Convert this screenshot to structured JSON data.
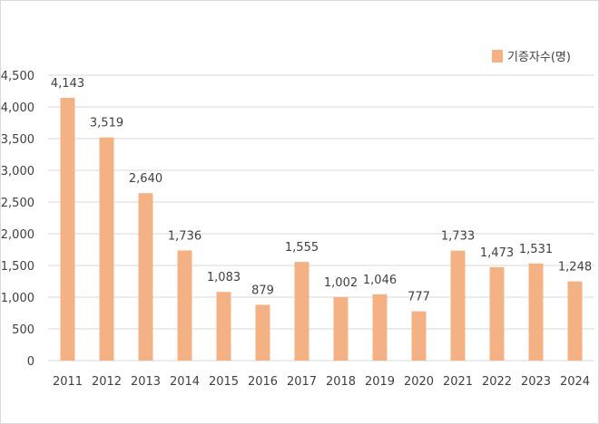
{
  "chart_data": {
    "type": "bar",
    "categories": [
      "2011",
      "2012",
      "2013",
      "2014",
      "2015",
      "2016",
      "2017",
      "2018",
      "2019",
      "2020",
      "2021",
      "2022",
      "2023",
      "2024"
    ],
    "series": [
      {
        "name": "기증자수(명)",
        "values": [
          4143,
          3519,
          2640,
          1736,
          1083,
          879,
          1555,
          1002,
          1046,
          777,
          1733,
          1473,
          1531,
          1248
        ],
        "value_labels": [
          "4,143",
          "3,519",
          "2,640",
          "1,736",
          "1,083",
          "879",
          "1,555",
          "1,002",
          "1,046",
          "777",
          "1,733",
          "1,473",
          "1,531",
          "1,248"
        ]
      }
    ],
    "ylim": [
      0,
      4500
    ],
    "y_ticks": [
      0,
      500,
      1000,
      1500,
      2000,
      2500,
      3000,
      3500,
      4000,
      4500
    ],
    "y_tick_labels": [
      "0",
      "500",
      "1,000",
      "1,500",
      "2,000",
      "2,500",
      "3,000",
      "3,500",
      "4,000",
      "4,500"
    ],
    "grid": true,
    "legend_position": "top-right",
    "colors": {
      "bar": "#F4B183",
      "grid": "#d9d9d9",
      "text": "#404040"
    }
  }
}
